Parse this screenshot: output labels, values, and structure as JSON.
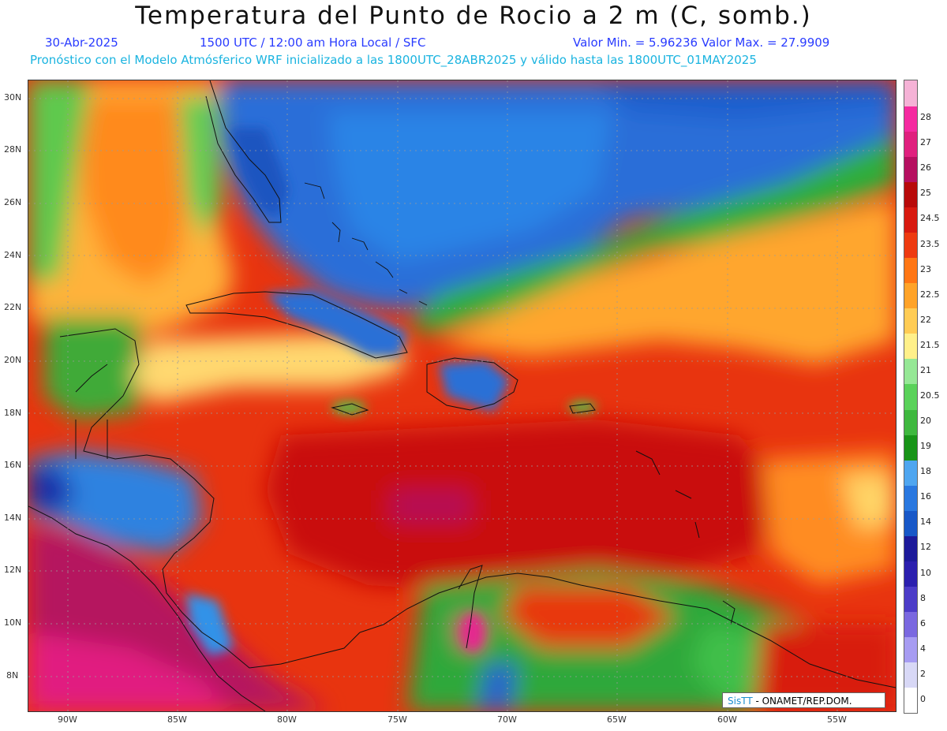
{
  "header": {
    "title": "Temperatura del Punto de Rocio a 2 m (C, somb.)",
    "date": "30-Abr-2025",
    "time": "1500 UTC / 12:00 am Hora Local / SFC",
    "minmax": "Valor Min. = 5.96236  Valor Max. = 27.9909",
    "model_line": "Pronóstico con el Modelo Atmósferico WRF inicializado a las 1800UTC_28ABR2025 y válido hasta las  1800UTC_01MAY2025"
  },
  "axes": {
    "lat_labels": [
      "30N",
      "28N",
      "26N",
      "24N",
      "22N",
      "20N",
      "18N",
      "16N",
      "14N",
      "12N",
      "10N",
      "8N"
    ],
    "lon_labels": [
      "90W",
      "85W",
      "80W",
      "75W",
      "70W",
      "65W",
      "60W",
      "55W"
    ]
  },
  "colorbar": {
    "labels": [
      "0",
      "2",
      "4",
      "6",
      "8",
      "10",
      "12",
      "14",
      "16",
      "18",
      "19",
      "20",
      "20.5",
      "21",
      "21.5",
      "22",
      "22.5",
      "23",
      "23.5",
      "24.5",
      "25",
      "26",
      "27",
      "28"
    ],
    "colors": [
      "#ffffff",
      "#d8d8f6",
      "#a79cf2",
      "#7a68e0",
      "#4c3cc8",
      "#2b1fae",
      "#1d1a9a",
      "#1858c8",
      "#2a78e0",
      "#4fa6f0",
      "#189418",
      "#3fb83f",
      "#5ad25a",
      "#96e896",
      "#fff08a",
      "#ffcc55",
      "#ffa328",
      "#ff7614",
      "#ee3a10",
      "#d81a10",
      "#b80a0a",
      "#b61060",
      "#e0207e",
      "#f52aa0",
      "#f5b2d6"
    ]
  },
  "credit": {
    "brand": "SisTT",
    "rest": " - ONAMET/REP.DOM."
  }
}
